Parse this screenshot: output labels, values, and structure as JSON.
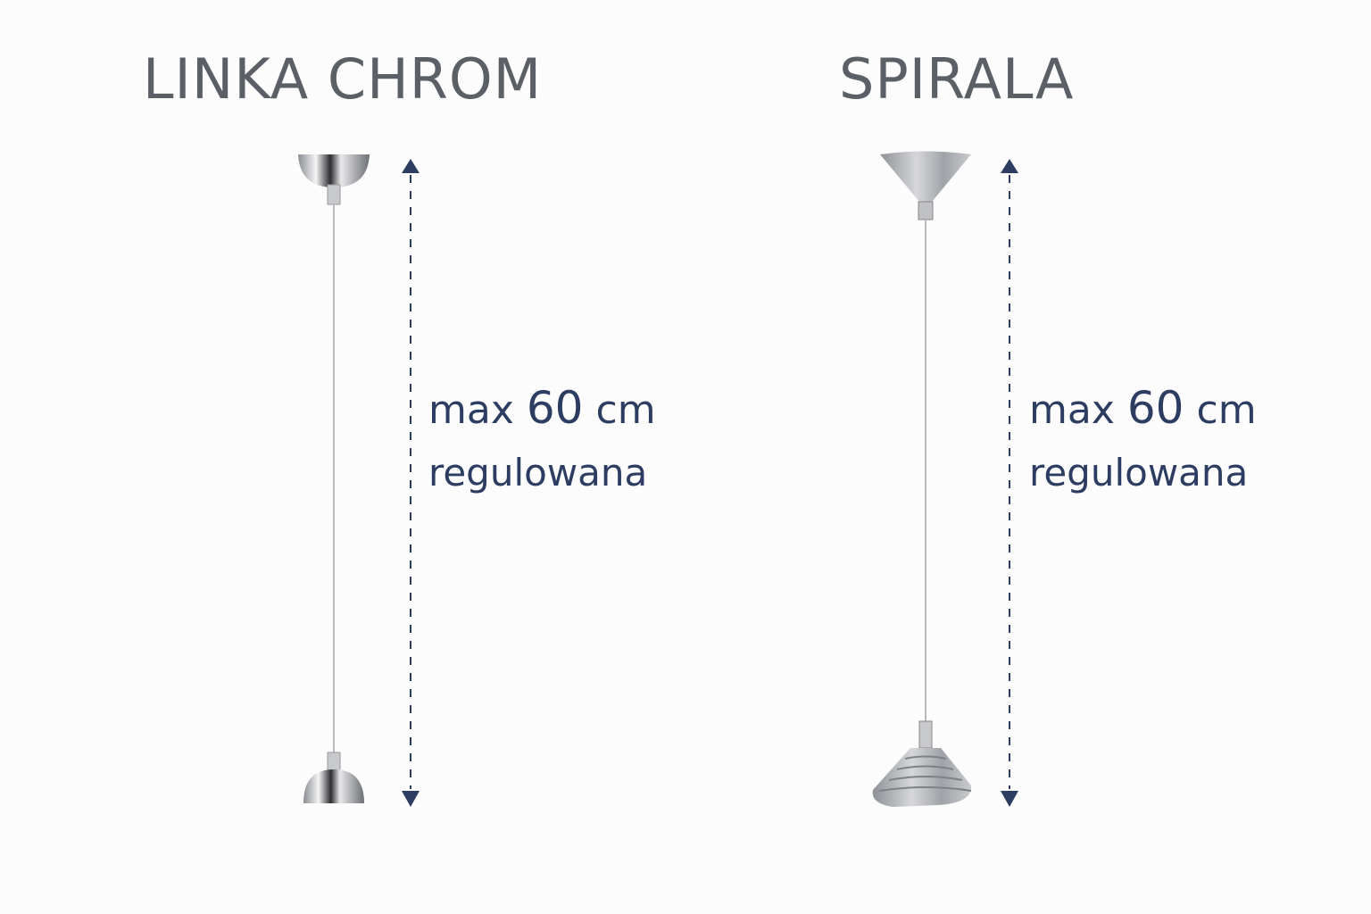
{
  "products": [
    {
      "title": "LINKA CHROM",
      "spec_prefix": "max",
      "spec_value": "60",
      "spec_unit": "cm",
      "spec_note": "regulowana"
    },
    {
      "title": "SPIRALA",
      "spec_prefix": "max",
      "spec_value": "60",
      "spec_unit": "cm",
      "spec_note": "regulowana"
    }
  ],
  "colors": {
    "title": "#5b5f66",
    "spec": "#2d3d61",
    "arrow": "#2d3d61"
  }
}
